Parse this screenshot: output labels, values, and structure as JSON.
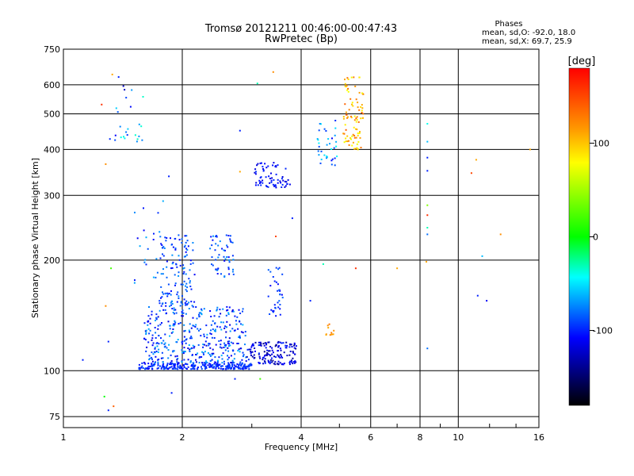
{
  "chart_data": {
    "type": "scatter",
    "title": "Tromsø 20121211 00:46:00-00:47:43",
    "subtitle": "RwPretec (Bp)",
    "xlabel": "Frequency [MHz]",
    "ylabel": "Stationary phase Virtual Height [km]",
    "x_scale": "log",
    "y_scale": "log",
    "xlim": [
      1,
      16
    ],
    "ylim": [
      70,
      750
    ],
    "x_ticks": [
      1,
      2,
      4,
      6,
      8,
      10,
      16
    ],
    "x_tick_labels": [
      "1",
      "2",
      "4",
      "6",
      "8",
      "10",
      "16"
    ],
    "y_ticks": [
      75,
      100,
      200,
      300,
      400,
      500,
      600,
      750
    ],
    "y_tick_labels": [
      "75",
      "100",
      "200",
      "300",
      "400",
      "500",
      "600",
      "750"
    ],
    "grid": true,
    "phases_box": {
      "title": "Phases",
      "line_o": "mean, sd,O: -92.0, 18.0",
      "line_x": "mean, sd,X: 69.7, 25.9"
    },
    "colorbar": {
      "label": "[deg]",
      "range": [
        -180,
        180
      ],
      "ticks": [
        100,
        0,
        -100
      ],
      "tick_labels": [
        "100",
        "0",
        "-100"
      ],
      "colors": [
        "#ff0000",
        "#ff9900",
        "#ffff00",
        "#00ff00",
        "#00ffff",
        "#0000ff",
        "#000000"
      ]
    },
    "clusters": [
      {
        "name": "",
        "x_range": [
          1.55,
          3.0
        ],
        "y_range": [
          101,
          105
        ],
        "phase_range": [
          -110,
          -85
        ],
        "count": 260
      },
      {
        "name": "",
        "x_range": [
          1.6,
          2.9
        ],
        "y_range": [
          105,
          150
        ],
        "phase_range": [
          -120,
          -60
        ],
        "count": 380
      },
      {
        "name": "",
        "x_range": [
          1.75,
          2.15
        ],
        "y_range": [
          150,
          235
        ],
        "phase_range": [
          -110,
          -70
        ],
        "count": 130
      },
      {
        "name": "",
        "x_range": [
          2.35,
          2.7
        ],
        "y_range": [
          180,
          235
        ],
        "phase_range": [
          -110,
          -70
        ],
        "count": 55
      },
      {
        "name": "",
        "x_range": [
          2.9,
          3.9
        ],
        "y_range": [
          104,
          120
        ],
        "phase_range": [
          -140,
          -95
        ],
        "count": 150
      },
      {
        "name": "",
        "x_range": [
          3.3,
          3.6
        ],
        "y_range": [
          140,
          195
        ],
        "phase_range": [
          -110,
          -80
        ],
        "count": 35
      },
      {
        "name": "",
        "x_range": [
          3.05,
          3.75
        ],
        "y_range": [
          315,
          370
        ],
        "phase_range": [
          -120,
          -95
        ],
        "count": 70
      },
      {
        "name": "",
        "x_range": [
          4.4,
          4.95
        ],
        "y_range": [
          360,
          480
        ],
        "phase_range": [
          -110,
          -40
        ],
        "count": 35
      },
      {
        "name": "",
        "x_range": [
          4.6,
          4.85
        ],
        "y_range": [
          125,
          135
        ],
        "phase_range": [
          100,
          130
        ],
        "count": 10
      },
      {
        "name": "",
        "x_range": [
          5.1,
          5.75
        ],
        "y_range": [
          400,
          630
        ],
        "phase_range": [
          70,
          140
        ],
        "count": 90
      },
      {
        "name": "",
        "x_range": [
          1.3,
          1.6
        ],
        "y_range": [
          420,
          600
        ],
        "phase_range": [
          -130,
          -30
        ],
        "count": 25
      },
      {
        "name": "",
        "x_range": [
          1.5,
          1.85
        ],
        "y_range": [
          170,
          300
        ],
        "phase_range": [
          -110,
          -60
        ],
        "count": 25
      }
    ],
    "scattered_points": [
      {
        "x": 1.25,
        "y": 530,
        "phase": 160
      },
      {
        "x": 1.33,
        "y": 640,
        "phase": 110
      },
      {
        "x": 1.38,
        "y": 630,
        "phase": -100
      },
      {
        "x": 1.28,
        "y": 365,
        "phase": 120
      },
      {
        "x": 1.28,
        "y": 150,
        "phase": 120
      },
      {
        "x": 1.32,
        "y": 190,
        "phase": 20
      },
      {
        "x": 1.12,
        "y": 107,
        "phase": -100
      },
      {
        "x": 1.3,
        "y": 120,
        "phase": -100
      },
      {
        "x": 1.27,
        "y": 85,
        "phase": 0
      },
      {
        "x": 1.3,
        "y": 78,
        "phase": -100
      },
      {
        "x": 1.34,
        "y": 80,
        "phase": 140
      },
      {
        "x": 1.88,
        "y": 87,
        "phase": -100
      },
      {
        "x": 1.85,
        "y": 338,
        "phase": -100
      },
      {
        "x": 2.72,
        "y": 95,
        "phase": -100
      },
      {
        "x": 3.15,
        "y": 95,
        "phase": 20
      },
      {
        "x": 2.8,
        "y": 348,
        "phase": 110
      },
      {
        "x": 2.8,
        "y": 450,
        "phase": -100
      },
      {
        "x": 3.1,
        "y": 605,
        "phase": -30
      },
      {
        "x": 3.4,
        "y": 650,
        "phase": 120
      },
      {
        "x": 3.45,
        "y": 232,
        "phase": 150
      },
      {
        "x": 3.8,
        "y": 260,
        "phase": -100
      },
      {
        "x": 4.55,
        "y": 195,
        "phase": -30
      },
      {
        "x": 4.22,
        "y": 155,
        "phase": -100
      },
      {
        "x": 5.5,
        "y": 190,
        "phase": 160
      },
      {
        "x": 7.0,
        "y": 190,
        "phase": 110
      },
      {
        "x": 8.35,
        "y": 470,
        "phase": -40
      },
      {
        "x": 8.35,
        "y": 420,
        "phase": -60
      },
      {
        "x": 8.35,
        "y": 380,
        "phase": -100
      },
      {
        "x": 8.35,
        "y": 350,
        "phase": -100
      },
      {
        "x": 8.35,
        "y": 282,
        "phase": 40
      },
      {
        "x": 8.35,
        "y": 265,
        "phase": 160
      },
      {
        "x": 8.35,
        "y": 245,
        "phase": -30
      },
      {
        "x": 8.35,
        "y": 235,
        "phase": -80
      },
      {
        "x": 8.3,
        "y": 198,
        "phase": 110
      },
      {
        "x": 8.35,
        "y": 115,
        "phase": -80
      },
      {
        "x": 10.8,
        "y": 345,
        "phase": 150
      },
      {
        "x": 11.1,
        "y": 375,
        "phase": 110
      },
      {
        "x": 12.8,
        "y": 235,
        "phase": 120
      },
      {
        "x": 11.2,
        "y": 160,
        "phase": -100
      },
      {
        "x": 11.8,
        "y": 155,
        "phase": -110
      },
      {
        "x": 11.5,
        "y": 205,
        "phase": -60
      },
      {
        "x": 15.2,
        "y": 400,
        "phase": 110
      }
    ]
  }
}
